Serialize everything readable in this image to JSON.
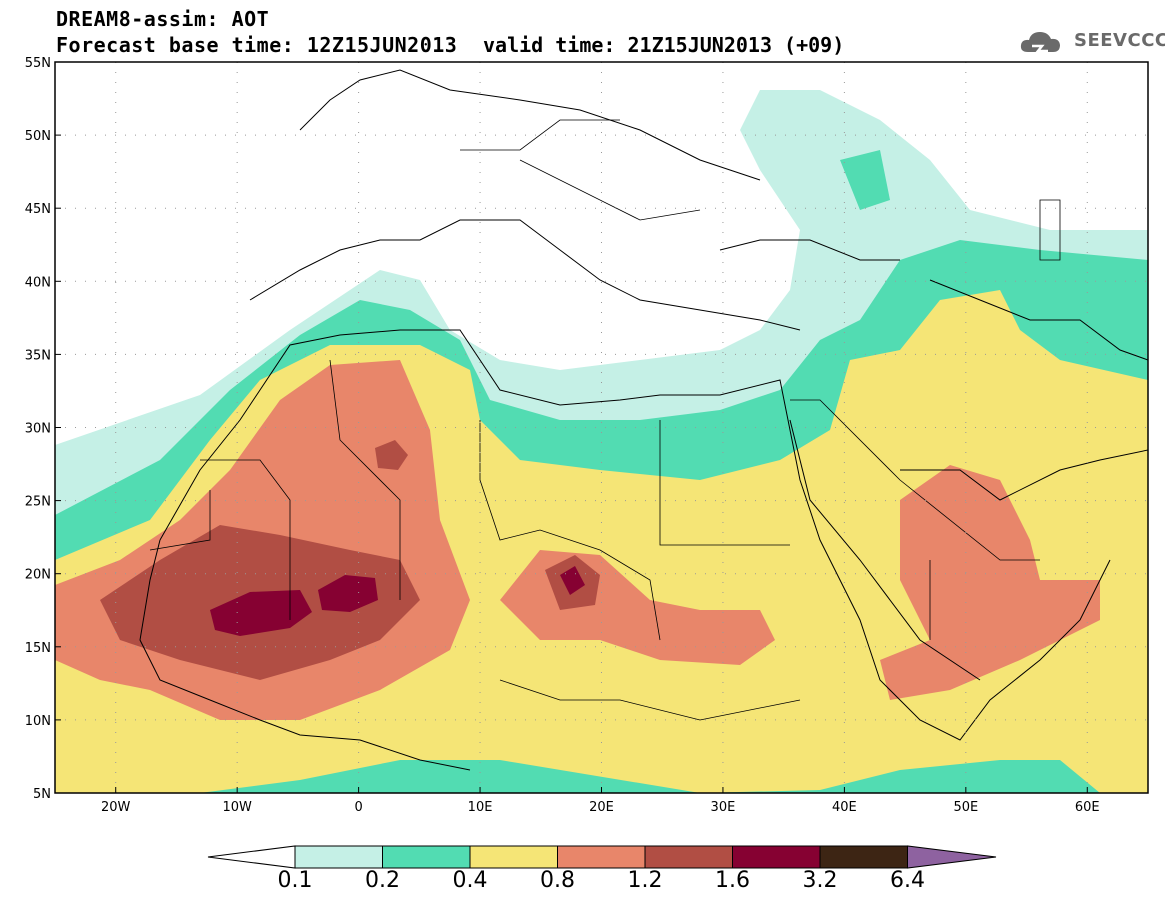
{
  "header": {
    "title_line1": "DREAM8-assim: AOT",
    "title_line2": "Forecast base time: 12Z15JUN2013",
    "valid_time": "valid time: 21Z15JUN2013 (+09)"
  },
  "logo": {
    "text": "SEEVCCC",
    "icon": "cloud-icon"
  },
  "axes": {
    "lat_labels": [
      "55N",
      "50N",
      "45N",
      "40N",
      "35N",
      "30N",
      "25N",
      "20N",
      "15N",
      "10N",
      "5N"
    ],
    "lon_labels": [
      "20W",
      "10W",
      "0",
      "10E",
      "20E",
      "30E",
      "40E",
      "50E",
      "60E"
    ],
    "lat_range": [
      5,
      55
    ],
    "lon_range": [
      -25,
      65
    ],
    "grid": "dotted"
  },
  "colorbar": {
    "levels": [
      "0.1",
      "0.2",
      "0.4",
      "0.8",
      "1.2",
      "1.6",
      "3.2",
      "6.4"
    ],
    "colors": [
      "#ffffff",
      "#c5f0e6",
      "#52dcb2",
      "#f5e576",
      "#e8866a",
      "#b14e44",
      "#860132",
      "#3d2514",
      "#8e62a0"
    ]
  }
}
